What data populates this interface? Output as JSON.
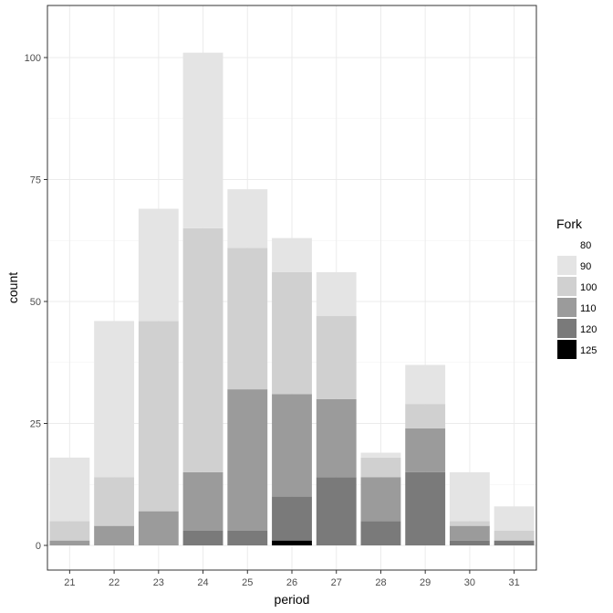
{
  "chart_data": {
    "type": "bar",
    "stacked": true,
    "xlabel": "period",
    "ylabel": "count",
    "categories": [
      "21",
      "22",
      "23",
      "24",
      "25",
      "26",
      "27",
      "28",
      "29",
      "30",
      "31"
    ],
    "ylim": [
      0,
      109
    ],
    "yticks": [
      0,
      25,
      50,
      75,
      100
    ],
    "grid": true,
    "legend": {
      "title": "Fork",
      "placement": "right"
    },
    "series": [
      {
        "name": "125",
        "color": "#000000",
        "values": [
          0,
          0,
          0,
          0,
          0,
          1,
          0,
          0,
          0,
          0,
          0
        ]
      },
      {
        "name": "120",
        "color": "#7a7a7a",
        "values": [
          0,
          0,
          0,
          3,
          3,
          9,
          14,
          5,
          15,
          1,
          1
        ]
      },
      {
        "name": "110",
        "color": "#9b9b9b",
        "values": [
          1,
          4,
          7,
          12,
          29,
          21,
          16,
          9,
          9,
          3,
          0
        ]
      },
      {
        "name": "100",
        "color": "#d0d0d0",
        "values": [
          4,
          10,
          39,
          50,
          29,
          25,
          17,
          4,
          5,
          1,
          2
        ]
      },
      {
        "name": "90",
        "color": "#e4e4e4",
        "values": [
          13,
          32,
          23,
          36,
          12,
          7,
          9,
          1,
          8,
          10,
          5
        ]
      },
      {
        "name": "80",
        "color": "#ffffff",
        "values": [
          0,
          0,
          0,
          0,
          0,
          0,
          0,
          0,
          0,
          0,
          0
        ]
      }
    ]
  }
}
